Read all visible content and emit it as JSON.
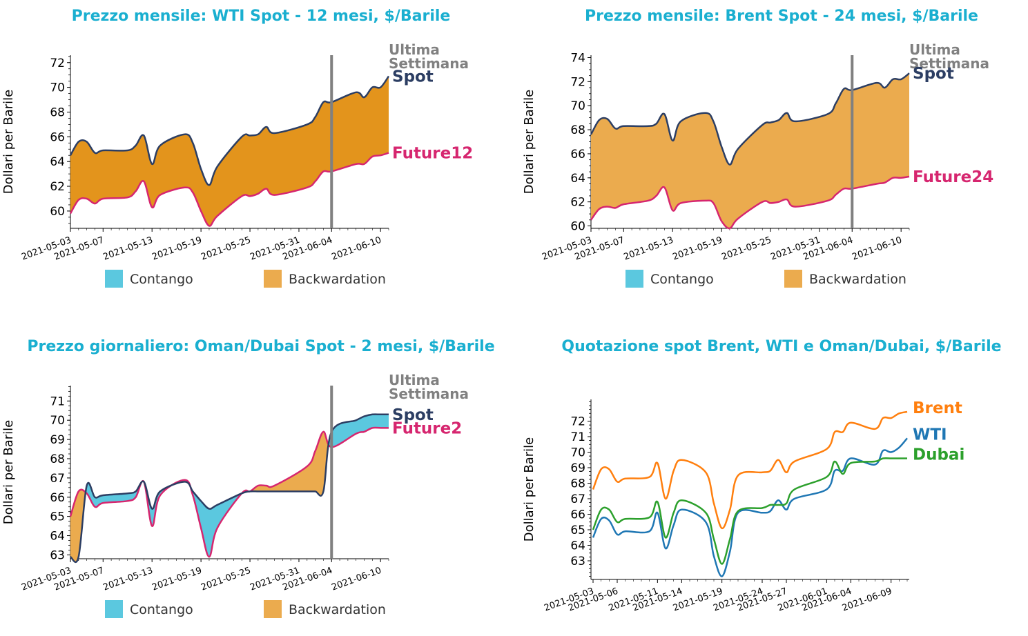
{
  "colors": {
    "title": "#1aafd0",
    "spot": "#2c3e63",
    "future": "#d6266f",
    "contango": "#5bc8df",
    "backwardation": "#ebab4e",
    "backwardation_dark": "#e3941c",
    "week_line": "#808080",
    "brent": "#ff7f0e",
    "wti": "#1f77b4",
    "dubai": "#2ca02c",
    "text": "#000000"
  },
  "legend": {
    "contango": "Contango",
    "backwardation": "Backwardation"
  },
  "chart_data": [
    {
      "type": "area",
      "title": "Prezzo mensile: WTI Spot - 12 mesi, $/Barile",
      "ylabel": "Dollari per Barile",
      "xlabel": "",
      "ylim": [
        58.6,
        72.6
      ],
      "yticks": [
        60,
        62,
        64,
        66,
        68,
        70,
        72
      ],
      "xticks": [
        "2021-05-03",
        "2021-05-07",
        "2021-05-13",
        "2021-05-19",
        "2021-05-25",
        "2021-05-31",
        "2021-06-04",
        "2021-06-10"
      ],
      "vline_label": "Ultima Settimana",
      "vline_at": "2021-06-04",
      "grid": false,
      "legend_placement": "bottom",
      "fill": "backwardation_dark",
      "x": [
        "2021-05-03",
        "2021-05-04",
        "2021-05-05",
        "2021-05-06",
        "2021-05-07",
        "2021-05-10",
        "2021-05-11",
        "2021-05-12",
        "2021-05-13",
        "2021-05-14",
        "2021-05-17",
        "2021-05-18",
        "2021-05-19",
        "2021-05-20",
        "2021-05-21",
        "2021-05-24",
        "2021-05-25",
        "2021-05-26",
        "2021-05-27",
        "2021-05-28",
        "2021-06-01",
        "2021-06-02",
        "2021-06-03",
        "2021-06-04",
        "2021-06-07",
        "2021-06-08",
        "2021-06-09",
        "2021-06-10",
        "2021-06-11"
      ],
      "series": [
        {
          "name": "Spot",
          "values": [
            64.5,
            65.6,
            65.6,
            64.7,
            64.9,
            64.9,
            65.3,
            66.1,
            63.8,
            65.3,
            66.2,
            65.5,
            63.4,
            62.1,
            63.6,
            66.0,
            66.1,
            66.2,
            66.8,
            66.3,
            67.0,
            67.6,
            68.8,
            68.8,
            69.6,
            69.2,
            70.0,
            70.0,
            70.9
          ]
        },
        {
          "name": "Future12",
          "values": [
            59.8,
            60.9,
            61.0,
            60.6,
            61.0,
            61.1,
            61.6,
            62.4,
            60.3,
            61.3,
            61.9,
            61.5,
            60.0,
            58.8,
            59.6,
            61.2,
            61.2,
            61.4,
            61.8,
            61.3,
            61.9,
            62.4,
            63.2,
            63.2,
            63.8,
            63.8,
            64.4,
            64.5,
            64.7
          ]
        }
      ]
    },
    {
      "type": "area",
      "title": "Prezzo mensile: Brent Spot - 24 mesi, $/Barile",
      "ylabel": "Dollari per Barile",
      "xlabel": "",
      "ylim": [
        59.8,
        74.2
      ],
      "yticks": [
        60,
        62,
        64,
        66,
        68,
        70,
        72,
        74
      ],
      "xticks": [
        "2021-05-03",
        "2021-05-07",
        "2021-05-13",
        "2021-05-19",
        "2021-05-25",
        "2021-05-31",
        "2021-06-04",
        "2021-06-10"
      ],
      "vline_label": "Ultima Settimana",
      "vline_at": "2021-06-04",
      "grid": false,
      "legend_placement": "bottom",
      "fill": "backwardation",
      "x": [
        "2021-05-03",
        "2021-05-04",
        "2021-05-05",
        "2021-05-06",
        "2021-05-07",
        "2021-05-10",
        "2021-05-11",
        "2021-05-12",
        "2021-05-13",
        "2021-05-14",
        "2021-05-17",
        "2021-05-18",
        "2021-05-19",
        "2021-05-20",
        "2021-05-21",
        "2021-05-24",
        "2021-05-25",
        "2021-05-26",
        "2021-05-27",
        "2021-05-28",
        "2021-06-01",
        "2021-06-02",
        "2021-06-03",
        "2021-06-04",
        "2021-06-07",
        "2021-06-08",
        "2021-06-09",
        "2021-06-10",
        "2021-06-11"
      ],
      "series": [
        {
          "name": "Spot",
          "values": [
            67.6,
            68.8,
            68.9,
            68.1,
            68.3,
            68.3,
            68.5,
            69.3,
            67.1,
            68.7,
            69.4,
            68.7,
            66.6,
            65.1,
            66.4,
            68.4,
            68.6,
            68.8,
            69.4,
            68.7,
            69.3,
            70.2,
            71.4,
            71.3,
            71.9,
            71.5,
            72.2,
            72.2,
            72.7
          ]
        },
        {
          "name": "Future24",
          "values": [
            60.5,
            61.4,
            61.6,
            61.5,
            61.8,
            62.1,
            62.5,
            63.2,
            61.3,
            61.9,
            62.1,
            61.9,
            60.4,
            59.8,
            60.6,
            62.0,
            61.9,
            62.0,
            62.2,
            61.6,
            62.1,
            62.6,
            63.1,
            63.1,
            63.5,
            63.6,
            64.0,
            64.0,
            64.1
          ]
        }
      ]
    },
    {
      "type": "area",
      "title": "Prezzo giornaliero: Oman/Dubai Spot - 2 mesi, $/Barile",
      "ylabel": "Dollari per Barile",
      "xlabel": "",
      "ylim": [
        62.8,
        71.8
      ],
      "yticks": [
        63,
        64,
        65,
        66,
        67,
        68,
        69,
        70,
        71
      ],
      "xticks": [
        "2021-05-03",
        "2021-05-07",
        "2021-05-13",
        "2021-05-19",
        "2021-05-25",
        "2021-05-31",
        "2021-06-04",
        "2021-06-10"
      ],
      "vline_label": "Ultima Settimana",
      "vline_at": "2021-06-04",
      "grid": false,
      "legend_placement": "bottom",
      "fill": "mixed",
      "x": [
        "2021-05-03",
        "2021-05-04",
        "2021-05-05",
        "2021-05-06",
        "2021-05-07",
        "2021-05-10",
        "2021-05-11",
        "2021-05-12",
        "2021-05-13",
        "2021-05-14",
        "2021-05-17",
        "2021-05-18",
        "2021-05-19",
        "2021-05-20",
        "2021-05-21",
        "2021-05-24",
        "2021-05-25",
        "2021-05-26",
        "2021-05-27",
        "2021-05-28",
        "2021-06-01",
        "2021-06-02",
        "2021-06-03",
        "2021-06-04",
        "2021-06-07",
        "2021-06-08",
        "2021-06-09",
        "2021-06-10",
        "2021-06-11"
      ],
      "series": [
        {
          "name": "Spot",
          "values": [
            62.9,
            62.9,
            66.6,
            66.0,
            66.1,
            66.2,
            66.3,
            66.8,
            65.4,
            66.3,
            66.8,
            66.3,
            65.8,
            65.4,
            65.6,
            66.2,
            66.3,
            66.3,
            66.3,
            66.3,
            66.3,
            66.3,
            66.3,
            69.4,
            70.0,
            70.2,
            70.3,
            70.3,
            70.3
          ]
        },
        {
          "name": "Future2",
          "values": [
            65.0,
            66.3,
            66.2,
            65.5,
            65.7,
            65.8,
            66.0,
            66.8,
            64.5,
            66.1,
            66.9,
            66.1,
            64.4,
            62.9,
            64.4,
            66.2,
            66.3,
            66.6,
            66.6,
            66.6,
            67.6,
            68.4,
            69.4,
            68.6,
            69.3,
            69.4,
            69.6,
            69.6,
            69.6
          ]
        }
      ]
    },
    {
      "type": "line",
      "title": "Quotazione spot Brent, WTI e Oman/Dubai, $/Barile",
      "ylabel": "Dollari per Barile",
      "xlabel": "",
      "ylim": [
        61.8,
        73.4
      ],
      "yticks": [
        63,
        64,
        65,
        66,
        67,
        68,
        69,
        70,
        71,
        72
      ],
      "xticks": [
        "2021-05-03",
        "2021-05-06",
        "2021-05-11",
        "2021-05-14",
        "2021-05-19",
        "2021-05-24",
        "2021-05-27",
        "2021-06-01",
        "2021-06-04",
        "2021-06-09"
      ],
      "grid": false,
      "x": [
        "2021-05-03",
        "2021-05-04",
        "2021-05-05",
        "2021-05-06",
        "2021-05-07",
        "2021-05-10",
        "2021-05-11",
        "2021-05-12",
        "2021-05-13",
        "2021-05-14",
        "2021-05-17",
        "2021-05-18",
        "2021-05-19",
        "2021-05-20",
        "2021-05-21",
        "2021-05-24",
        "2021-05-25",
        "2021-05-26",
        "2021-05-27",
        "2021-05-28",
        "2021-06-01",
        "2021-06-02",
        "2021-06-03",
        "2021-06-04",
        "2021-06-07",
        "2021-06-08",
        "2021-06-09",
        "2021-06-10",
        "2021-06-11"
      ],
      "series": [
        {
          "name": "Brent",
          "values": [
            67.6,
            68.9,
            68.9,
            68.1,
            68.3,
            68.4,
            69.3,
            67.0,
            68.8,
            69.5,
            68.7,
            66.7,
            65.1,
            66.3,
            68.5,
            68.7,
            68.8,
            69.5,
            68.7,
            69.4,
            70.2,
            71.3,
            71.3,
            71.9,
            71.5,
            72.2,
            72.2,
            72.5,
            72.6
          ]
        },
        {
          "name": "WTI",
          "values": [
            64.5,
            65.7,
            65.6,
            64.7,
            64.9,
            64.9,
            66.1,
            63.8,
            65.3,
            66.3,
            65.5,
            63.3,
            62.0,
            63.6,
            66.1,
            66.1,
            66.2,
            66.9,
            66.3,
            67.0,
            67.6,
            68.8,
            68.8,
            69.6,
            69.2,
            70.1,
            70.0,
            70.3,
            70.9
          ]
        },
        {
          "name": "Dubai",
          "values": [
            65.0,
            66.3,
            66.3,
            65.5,
            65.7,
            65.8,
            66.8,
            64.5,
            66.1,
            66.9,
            66.1,
            64.4,
            62.8,
            64.4,
            66.2,
            66.4,
            66.6,
            66.6,
            66.7,
            67.6,
            68.4,
            69.4,
            68.6,
            69.3,
            69.4,
            69.6,
            69.6,
            69.6,
            69.6
          ]
        }
      ]
    }
  ]
}
